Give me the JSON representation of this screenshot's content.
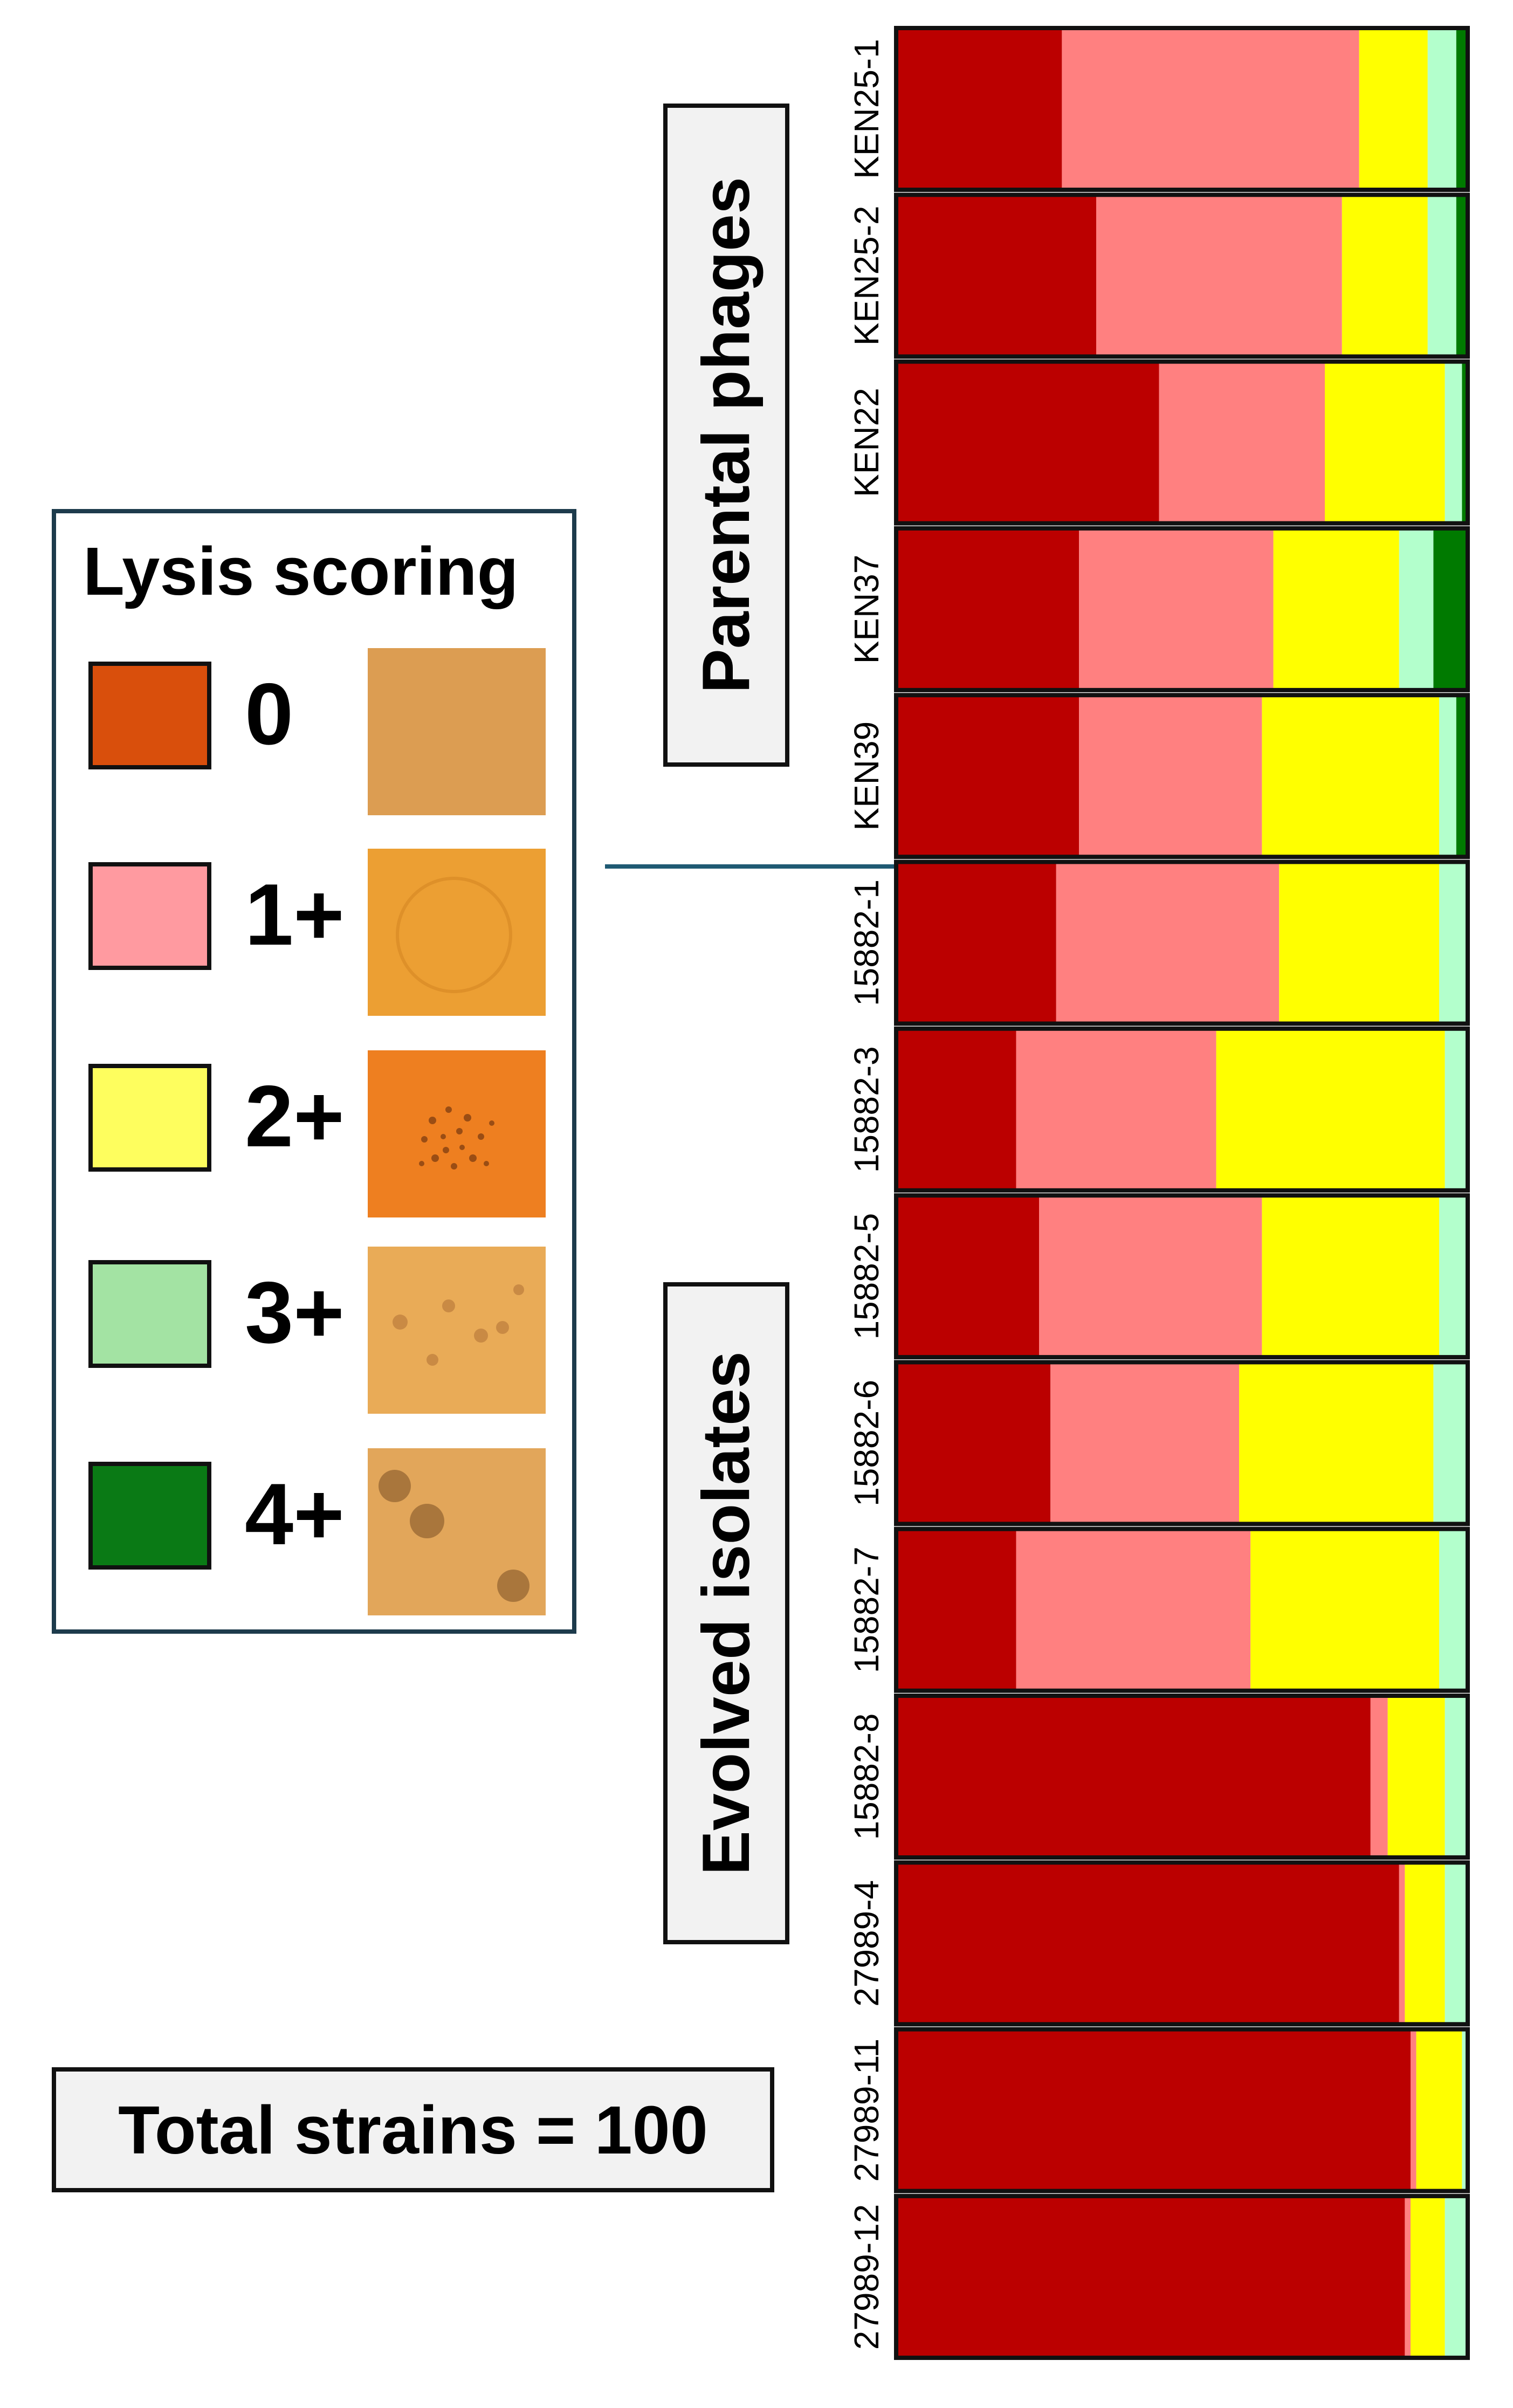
{
  "legend": {
    "title": "Lysis scoring",
    "items": [
      {
        "label": "0",
        "color": "#d94f0c",
        "plaque_color": "#dc9d52",
        "plaque_type": "uniform"
      },
      {
        "label": "1+",
        "color": "#ff9aa0",
        "plaque_color": "#ec9f33",
        "plaque_type": "faint-ring"
      },
      {
        "label": "2+",
        "color": "#fefe5e",
        "plaque_color": "#ee7f20",
        "plaque_type": "speckled-ring"
      },
      {
        "label": "3+",
        "color": "#a3e3a3",
        "plaque_color": "#e9ab57",
        "plaque_type": "small-spots"
      },
      {
        "label": "4+",
        "color": "#0a7a15",
        "plaque_color": "#e2a65a",
        "plaque_type": "large-spots"
      }
    ]
  },
  "groups": {
    "parental": "Parental phages",
    "evolved": "Evolved isolates"
  },
  "total": "Total strains = 100",
  "chart_data": {
    "type": "bar",
    "orientation": "horizontal",
    "stacked": true,
    "xlim": [
      0,
      100
    ],
    "categories": [
      "KEN25-1",
      "KEN25-2",
      "KEN22",
      "KEN37",
      "KEN39",
      "15882-1",
      "15882-3",
      "15882-5",
      "15882-6",
      "15882-7",
      "15882-8",
      "27989-4",
      "27989-11",
      "27989-12"
    ],
    "series": [
      {
        "name": "0",
        "color": "#bb0000",
        "values": [
          29,
          35,
          46,
          32,
          32,
          28,
          21,
          25,
          27,
          21,
          83,
          88,
          90,
          89
        ]
      },
      {
        "name": "1+",
        "color": "#ff8080",
        "values": [
          52,
          43,
          29,
          34,
          32,
          39,
          35,
          39,
          33,
          41,
          3,
          1,
          1,
          1
        ]
      },
      {
        "name": "2+",
        "color": "#ffff00",
        "values": [
          12,
          15,
          21,
          22,
          31,
          28,
          40,
          31,
          34,
          33,
          10,
          7,
          8,
          6
        ]
      },
      {
        "name": "3+",
        "color": "#b3ffcc",
        "values": [
          5,
          5,
          3,
          6,
          3,
          5,
          4,
          5,
          6,
          5,
          4,
          4,
          1,
          4
        ]
      },
      {
        "name": "4+",
        "color": "#007a00",
        "values": [
          2,
          2,
          1,
          6,
          2,
          0,
          0,
          0,
          0,
          0,
          0,
          0,
          0,
          0
        ]
      }
    ],
    "group_spans": [
      {
        "group": "Parental phages",
        "from": "KEN25-1",
        "to": "KEN39"
      },
      {
        "group": "Evolved isolates",
        "from": "15882-1",
        "to": "27989-12"
      }
    ]
  }
}
